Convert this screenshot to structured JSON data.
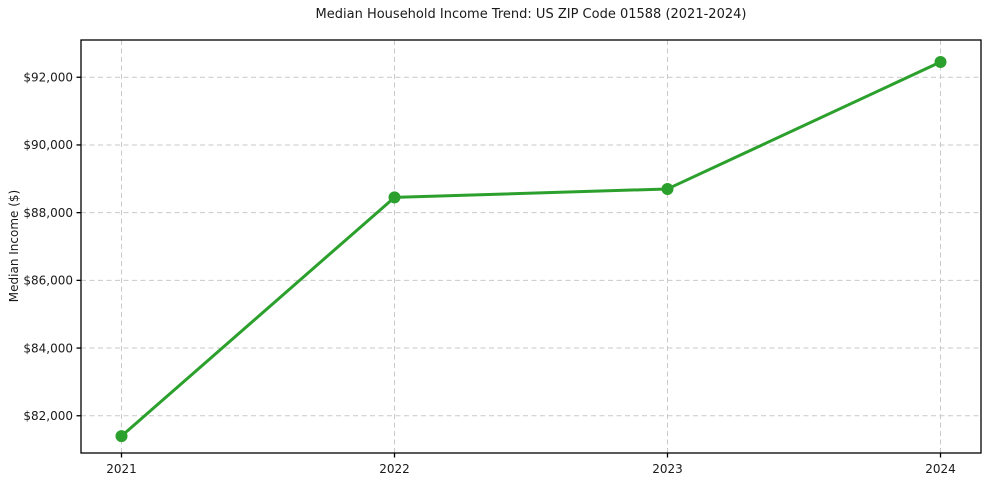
{
  "chart_data": {
    "type": "line",
    "title": "Median Household Income Trend: US ZIP Code 01588 (2021-2024)",
    "xlabel": "",
    "ylabel": "Median Income ($)",
    "x": [
      "2021",
      "2022",
      "2023",
      "2024"
    ],
    "values": [
      81400,
      88450,
      88700,
      92450
    ],
    "ylim": [
      80900,
      93100
    ],
    "yticks": [
      82000,
      84000,
      86000,
      88000,
      90000,
      92000
    ],
    "ytick_labels": [
      "$82,000",
      "$84,000",
      "$86,000",
      "$88,000",
      "$90,000",
      "$92,000"
    ],
    "grid": true,
    "grid_style": "dashed",
    "legend": false,
    "line_color": "#2ca02c",
    "marker": "circle",
    "marker_color": "#2ca02c",
    "grid_color": "#c9c9c9",
    "axis_color": "#000000",
    "text_color": "#1a1a1a",
    "background_color": "#ffffff"
  }
}
